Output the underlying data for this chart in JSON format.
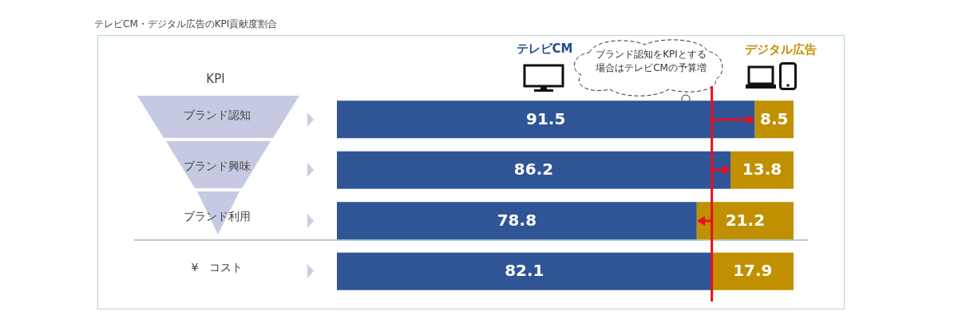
{
  "chart_data": {
    "type": "bar",
    "orientation": "horizontal",
    "stacked": true,
    "title": "テレビCM・デジタル広告のKPI貢献度割合",
    "ylabel": "KPI",
    "categories": [
      "ブランド認知",
      "ブランド興味",
      "ブランド利用",
      "¥　コスト"
    ],
    "series": [
      {
        "name": "テレビCM",
        "color": "#2f5597",
        "values": [
          91.5,
          86.2,
          78.8,
          82.1
        ]
      },
      {
        "name": "デジタル広告",
        "color": "#c09000",
        "values": [
          8.5,
          13.8,
          21.2,
          17.9
        ]
      }
    ],
    "xlim": [
      0,
      100
    ],
    "tick_labels": "y",
    "data_labels": true,
    "ref_lines": [
      {
        "axis": "x",
        "value": 82.1,
        "color": "#e8101c"
      }
    ],
    "annotations": [
      "ブランド認知をKPIとする場合はテレビCMの予算増"
    ]
  }
}
